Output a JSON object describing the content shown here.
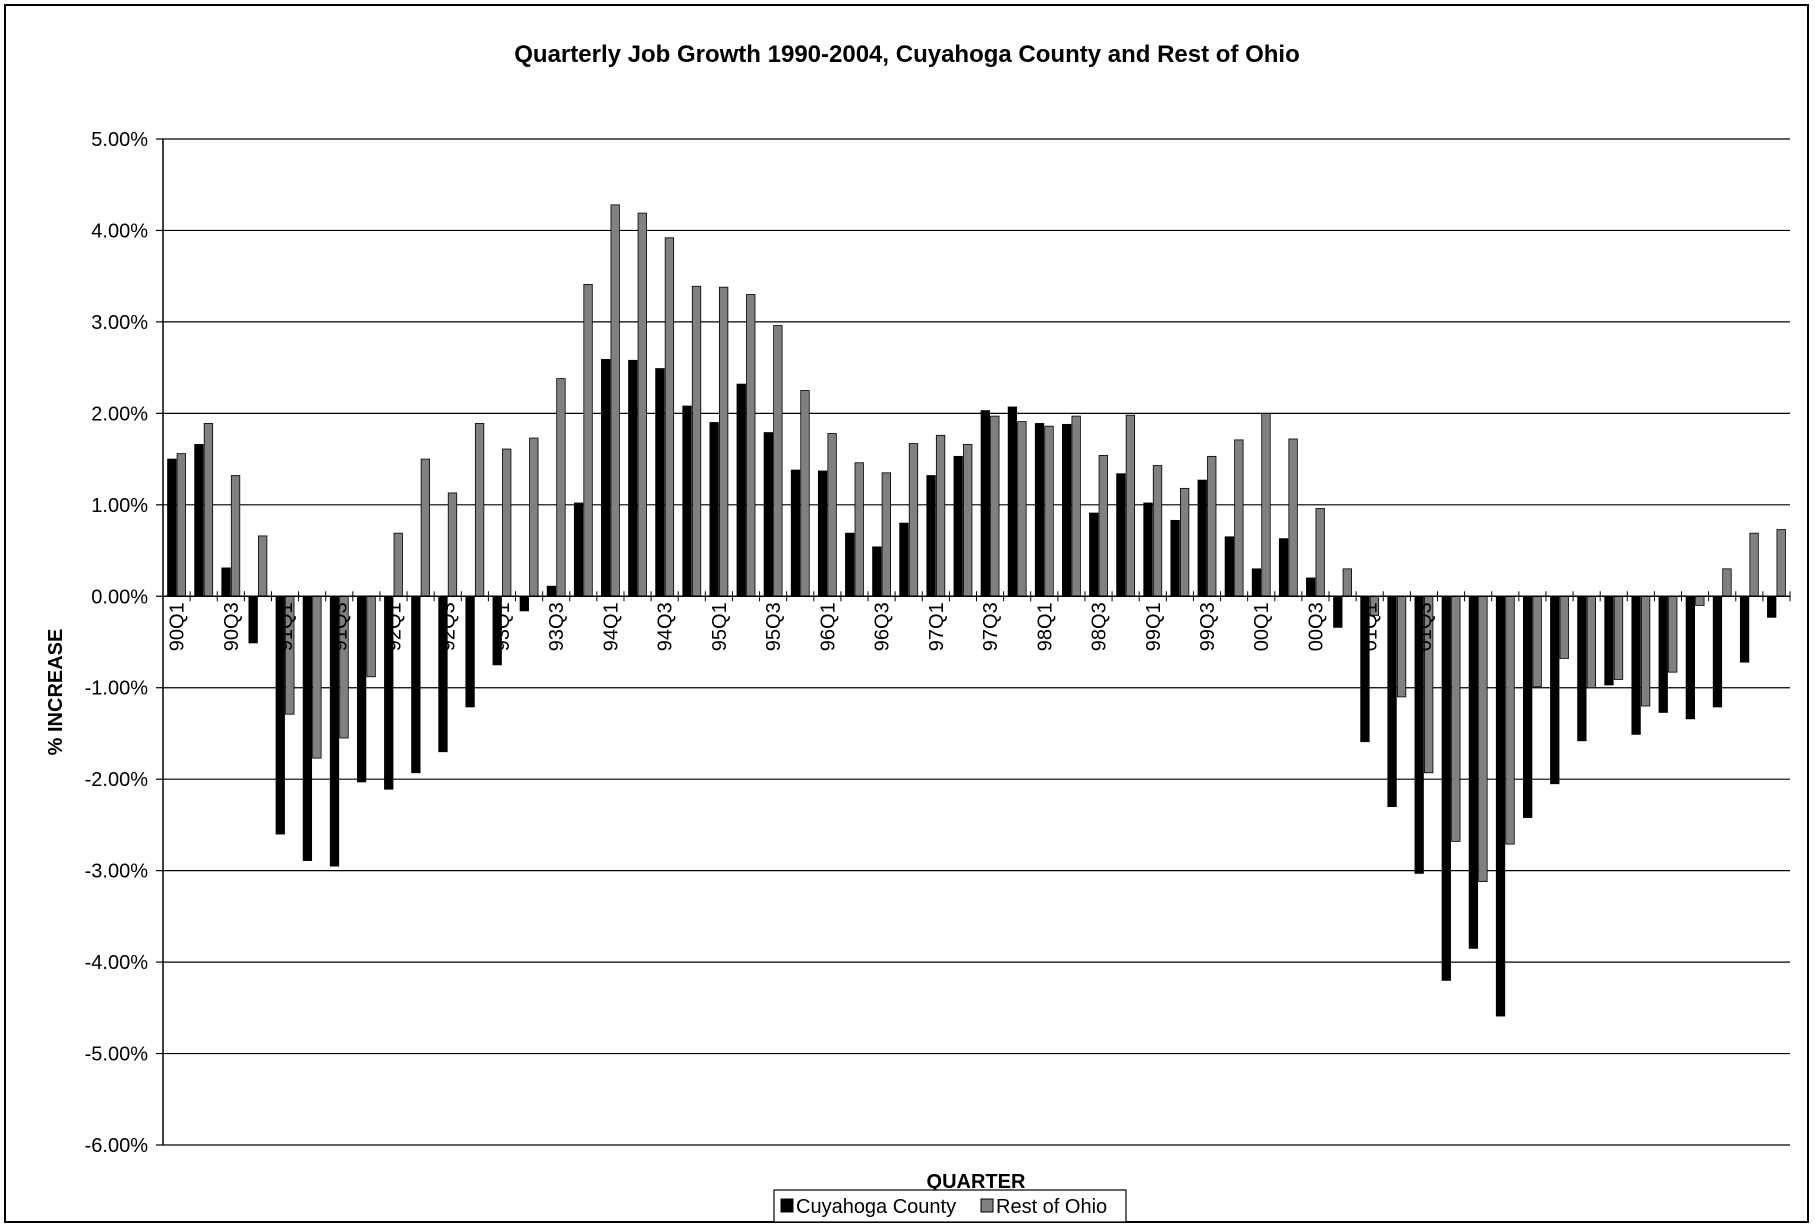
{
  "chart_data": {
    "type": "bar",
    "title": "Quarterly Job Growth 1990-2004, Cuyahoga County and Rest of Ohio",
    "xlabel": "QUARTER",
    "ylabel": "% INCREASE",
    "ylim": [
      -0.06,
      0.05
    ],
    "yticks": [
      "5.00%",
      "4.00%",
      "3.00%",
      "2.00%",
      "1.00%",
      "0.00%",
      "-1.00%",
      "-2.00%",
      "-3.00%",
      "-4.00%",
      "-5.00%",
      "-6.00%"
    ],
    "grid": true,
    "legend_position": "bottom",
    "categories": [
      "90Q1",
      "90Q2",
      "90Q3",
      "90Q4",
      "91Q1",
      "91Q2",
      "91Q3",
      "91Q4",
      "92Q1",
      "92Q2",
      "92Q3",
      "92Q4",
      "93Q1",
      "93Q2",
      "93Q3",
      "93Q4",
      "94Q1",
      "94Q2",
      "94Q3",
      "94Q4",
      "95Q1",
      "95Q2",
      "95Q3",
      "95Q4",
      "96Q1",
      "96Q2",
      "96Q3",
      "96Q4",
      "97Q1",
      "97Q2",
      "97Q3",
      "97Q4",
      "98Q1",
      "98Q2",
      "98Q3",
      "98Q4",
      "99Q1",
      "99Q2",
      "99Q3",
      "99Q4",
      "00Q1",
      "00Q2",
      "00Q3",
      "00Q4",
      "01Q1",
      "01Q2",
      "01Q3",
      "01Q4",
      "02Q1",
      "02Q2",
      "02Q3",
      "02Q4",
      "03Q1",
      "03Q2",
      "03Q3",
      "03Q4",
      "04Q1",
      "04Q2",
      "04Q3",
      "04Q4"
    ],
    "visible_xticks": [
      "90Q1",
      "90Q3",
      "91Q1",
      "91Q3",
      "92Q1",
      "92Q3",
      "93Q1",
      "93Q3",
      "94Q1",
      "94Q3",
      "95Q1",
      "95Q3",
      "96Q1",
      "96Q3",
      "97Q1",
      "97Q3",
      "98Q1",
      "98Q3",
      "99Q1",
      "99Q3",
      "00Q1",
      "00Q3",
      "01Q1",
      "01Q3"
    ],
    "series": [
      {
        "name": "Cuyahoga County",
        "color": "#000000",
        "values": [
          0.015,
          0.0166,
          0.0031,
          -0.0051,
          -0.026,
          -0.0289,
          -0.0295,
          -0.0203,
          -0.0211,
          -0.0193,
          -0.017,
          -0.0121,
          -0.0075,
          -0.0016,
          0.0011,
          0.0102,
          0.0259,
          0.0258,
          0.0249,
          0.0208,
          0.019,
          0.0232,
          0.0179,
          0.0138,
          0.0137,
          0.0069,
          0.0054,
          0.008,
          0.0132,
          0.0153,
          0.0203,
          0.0207,
          0.0189,
          0.0188,
          0.0091,
          0.0134,
          0.0102,
          0.0083,
          0.0127,
          0.0065,
          0.003,
          0.0063,
          0.002,
          -0.0034,
          -0.0159,
          -0.023,
          -0.0303,
          -0.042,
          -0.0385,
          -0.0459,
          -0.0242,
          -0.0205,
          -0.0158,
          -0.0097,
          -0.0151,
          -0.0127,
          -0.0134,
          -0.0121,
          -0.0072,
          -0.0023
        ]
      },
      {
        "name": "Rest of Ohio",
        "color": "#808080",
        "values": [
          0.0156,
          0.0189,
          0.0132,
          0.0066,
          -0.0129,
          -0.0177,
          -0.0155,
          -0.0088,
          0.0069,
          0.015,
          0.0113,
          0.0189,
          0.0161,
          0.0173,
          0.0238,
          0.0341,
          0.0428,
          0.0419,
          0.0392,
          0.0339,
          0.0338,
          0.033,
          0.0296,
          0.0225,
          0.0178,
          0.0146,
          0.0135,
          0.0167,
          0.0176,
          0.0166,
          0.0197,
          0.0191,
          0.0186,
          0.0197,
          0.0154,
          0.0198,
          0.0143,
          0.0118,
          0.0153,
          0.0171,
          0.02,
          0.0172,
          0.0096,
          0.003,
          -0.0021,
          -0.011,
          -0.0193,
          -0.0268,
          -0.0312,
          -0.0271,
          -0.0099,
          -0.0068,
          -0.01,
          -0.0091,
          -0.012,
          -0.0083,
          -0.001,
          0.003,
          0.0069,
          0.0073
        ]
      }
    ]
  }
}
